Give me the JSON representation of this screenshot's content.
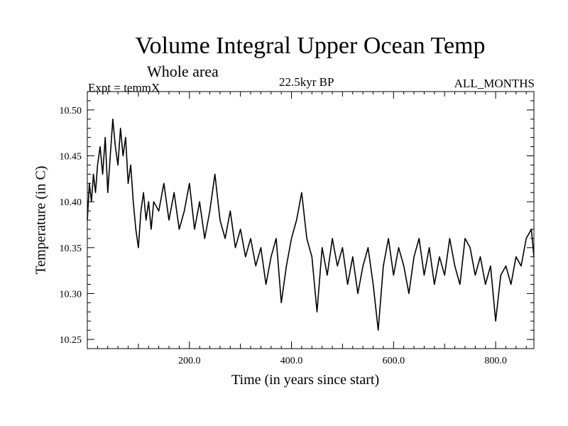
{
  "chart_data": {
    "type": "line",
    "title": "Volume Integral Upper Ocean Temp",
    "subtitle": "Whole area",
    "experiment": "Expt = temmX",
    "period": "22.5kyr BP",
    "months": "ALL_MONTHS",
    "xlabel": "Time (in years since start)",
    "ylabel": "Temperature (in C)",
    "xlim": [
      0,
      875
    ],
    "ylim": [
      10.24,
      10.52
    ],
    "x_ticks": [
      200,
      400,
      600,
      800
    ],
    "x_tick_labels": [
      "200.0",
      "400.0",
      "600.0",
      "800.0"
    ],
    "y_ticks": [
      10.25,
      10.3,
      10.35,
      10.4,
      10.45,
      10.5
    ],
    "y_tick_labels": [
      "10.25",
      "10.30",
      "10.35",
      "10.40",
      "10.45",
      "10.50"
    ],
    "series": [
      {
        "name": "Temperature",
        "color": "#000000",
        "x": [
          0,
          4,
          8,
          12,
          16,
          20,
          25,
          30,
          35,
          40,
          45,
          50,
          55,
          60,
          65,
          70,
          75,
          80,
          85,
          90,
          95,
          100,
          105,
          110,
          115,
          120,
          125,
          130,
          140,
          150,
          160,
          170,
          180,
          190,
          200,
          210,
          220,
          230,
          240,
          250,
          260,
          270,
          280,
          290,
          300,
          310,
          320,
          330,
          340,
          350,
          360,
          370,
          380,
          390,
          400,
          410,
          420,
          430,
          440,
          450,
          460,
          470,
          480,
          490,
          500,
          510,
          520,
          530,
          540,
          550,
          560,
          570,
          580,
          590,
          600,
          610,
          620,
          630,
          640,
          650,
          660,
          670,
          680,
          690,
          700,
          710,
          720,
          730,
          740,
          750,
          760,
          770,
          780,
          790,
          800,
          810,
          820,
          830,
          840,
          850,
          860,
          870,
          875
        ],
        "values": [
          10.38,
          10.42,
          10.4,
          10.43,
          10.41,
          10.44,
          10.46,
          10.43,
          10.47,
          10.41,
          10.45,
          10.49,
          10.46,
          10.44,
          10.48,
          10.45,
          10.47,
          10.42,
          10.44,
          10.4,
          10.37,
          10.35,
          10.39,
          10.41,
          10.38,
          10.4,
          10.37,
          10.4,
          10.39,
          10.42,
          10.38,
          10.41,
          10.37,
          10.39,
          10.42,
          10.37,
          10.4,
          10.36,
          10.39,
          10.43,
          10.38,
          10.36,
          10.39,
          10.35,
          10.37,
          10.34,
          10.36,
          10.33,
          10.35,
          10.31,
          10.34,
          10.36,
          10.29,
          10.33,
          10.36,
          10.38,
          10.41,
          10.36,
          10.34,
          10.28,
          10.35,
          10.32,
          10.36,
          10.33,
          10.35,
          10.31,
          10.34,
          10.3,
          10.33,
          10.35,
          10.31,
          10.26,
          10.33,
          10.36,
          10.32,
          10.35,
          10.33,
          10.3,
          10.34,
          10.36,
          10.32,
          10.35,
          10.31,
          10.34,
          10.32,
          10.36,
          10.33,
          10.31,
          10.36,
          10.35,
          10.32,
          10.34,
          10.31,
          10.33,
          10.27,
          10.32,
          10.33,
          10.31,
          10.34,
          10.33,
          10.36,
          10.37,
          10.34
        ]
      }
    ]
  }
}
